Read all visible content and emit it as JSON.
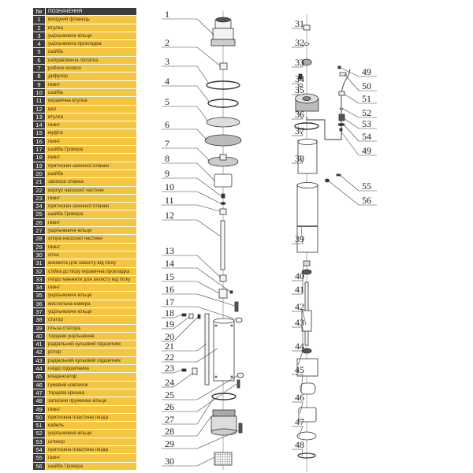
{
  "legend": {
    "header": {
      "num": "№",
      "label": "ПОЗНАЧЕННЯ"
    },
    "rows": [
      {
        "num": "1",
        "label": "вихідний фланець"
      },
      {
        "num": "2",
        "label": "втулка"
      },
      {
        "num": "3",
        "label": "ущільнююче кільце"
      },
      {
        "num": "4",
        "label": "ущільнююча прокладка"
      },
      {
        "num": "5",
        "label": "шайба"
      },
      {
        "num": "6",
        "label": "направляюча лопатка"
      },
      {
        "num": "7",
        "label": "робоче колесо"
      },
      {
        "num": "8",
        "label": "дифузор"
      },
      {
        "num": "9",
        "label": "гвинт"
      },
      {
        "num": "10",
        "label": "шайба"
      },
      {
        "num": "11",
        "label": "керамічна втулка"
      },
      {
        "num": "12",
        "label": "вал"
      },
      {
        "num": "13",
        "label": "втулка"
      },
      {
        "num": "14",
        "label": "гвинт"
      },
      {
        "num": "15",
        "label": "муфта"
      },
      {
        "num": "16",
        "label": "гвинт"
      },
      {
        "num": "17",
        "label": "шайба Гровера"
      },
      {
        "num": "18",
        "label": "гвинт"
      },
      {
        "num": "19",
        "label": "притискач захисної планки"
      },
      {
        "num": "20",
        "label": "шайба"
      },
      {
        "num": "21",
        "label": "захисна планка"
      },
      {
        "num": "22",
        "label": "корпус насосної частини"
      },
      {
        "num": "23",
        "label": "гвинт"
      },
      {
        "num": "24",
        "label": "притискач захисної планки"
      },
      {
        "num": "25",
        "label": "шайба Гровера"
      },
      {
        "num": "26",
        "label": "гвинт"
      },
      {
        "num": "27",
        "label": "ущільнююче кільце"
      },
      {
        "num": "28",
        "label": "опора насосної частини"
      },
      {
        "num": "29",
        "label": "гвинт"
      },
      {
        "num": "30",
        "label": "сітка"
      },
      {
        "num": "31",
        "label": "манжета для захисту від піску"
      },
      {
        "num": "32",
        "label": "стійка до піску керамічна прокладка"
      },
      {
        "num": "33",
        "label": "гніздо манжети для захисту від піску"
      },
      {
        "num": "34",
        "label": "гвинт"
      },
      {
        "num": "35",
        "label": "ущільнююче кільце"
      },
      {
        "num": "36",
        "label": "мастильна камера"
      },
      {
        "num": "37",
        "label": "ущільнююче кільце"
      },
      {
        "num": "38",
        "label": "статор"
      },
      {
        "num": "39",
        "label": "гільза статора"
      },
      {
        "num": "40",
        "label": "торцеве ущільнення"
      },
      {
        "num": "41",
        "label": "радіальний кульовий підшипник"
      },
      {
        "num": "42",
        "label": "ротор"
      },
      {
        "num": "43",
        "label": "радіальний кульовий підшипник"
      },
      {
        "num": "44",
        "label": "гніздо підшипника"
      },
      {
        "num": "45",
        "label": "конденсатор"
      },
      {
        "num": "46",
        "label": "гумовий ковпачок"
      },
      {
        "num": "47",
        "label": "торцева кришка"
      },
      {
        "num": "48",
        "label": "затискне пружинне кільце"
      },
      {
        "num": "49",
        "label": "гвинт"
      },
      {
        "num": "50",
        "label": "притискна пластина гнізда"
      },
      {
        "num": "51",
        "label": "кабель"
      },
      {
        "num": "52",
        "label": "ущільнююче кільце"
      },
      {
        "num": "53",
        "label": "штекер"
      },
      {
        "num": "54",
        "label": "притискна пластина гнізда"
      },
      {
        "num": "55",
        "label": "гвинт"
      },
      {
        "num": "56",
        "label": "шайба Гровера"
      }
    ]
  },
  "diagram": {
    "callouts": [
      "1",
      "2",
      "3",
      "4",
      "5",
      "6",
      "7",
      "8",
      "9",
      "10",
      "11",
      "12",
      "13",
      "14",
      "15",
      "16",
      "17",
      "18",
      "19",
      "20",
      "21",
      "22",
      "23",
      "24",
      "25",
      "26",
      "27",
      "28",
      "29",
      "30",
      "31",
      "32",
      "33",
      "34",
      "35",
      "36",
      "37",
      "38",
      "39",
      "40",
      "41",
      "42",
      "43",
      "44",
      "45",
      "46",
      "47",
      "48",
      "49",
      "50",
      "51",
      "52",
      "53",
      "54",
      "49",
      "55",
      "56"
    ]
  }
}
